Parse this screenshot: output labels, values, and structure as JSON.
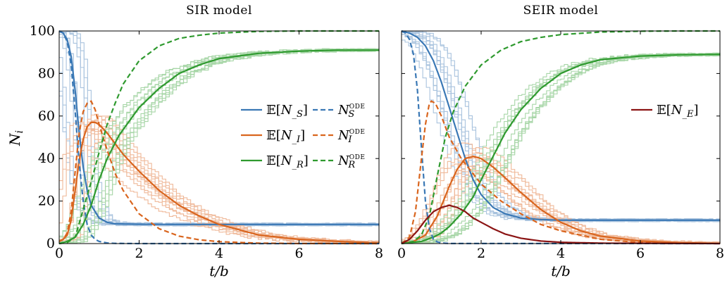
{
  "chart_data": [
    {
      "type": "line",
      "title": "SIR model",
      "xlabel": "t/b",
      "ylabel": "N_i",
      "xlim": [
        0,
        8
      ],
      "ylim": [
        0,
        100
      ],
      "xticks": [
        "0",
        "2",
        "4",
        "6",
        "8"
      ],
      "yticks": [
        "0",
        "20",
        "40",
        "60",
        "80",
        "100"
      ],
      "grid": false,
      "legend_position": "right",
      "series": [
        {
          "name": "𝔼[N_S]",
          "color": "#3a78b5",
          "dash": "solid",
          "x": [
            0,
            0.1,
            0.2,
            0.3,
            0.4,
            0.5,
            0.6,
            0.7,
            0.8,
            1.0,
            1.2,
            1.4,
            2,
            3,
            4,
            6,
            8
          ],
          "y": [
            100,
            99,
            96,
            88,
            72,
            52,
            36,
            25,
            18,
            12,
            10,
            9.3,
            9.1,
            9,
            9,
            9,
            9
          ]
        },
        {
          "name": "𝔼[N_I]",
          "color": "#d9651e",
          "dash": "solid",
          "x": [
            0,
            0.1,
            0.2,
            0.3,
            0.4,
            0.5,
            0.6,
            0.7,
            0.8,
            0.9,
            1.0,
            1.2,
            1.4,
            1.6,
            2,
            2.5,
            3,
            3.5,
            4,
            5,
            6,
            7,
            8
          ],
          "y": [
            1,
            2,
            4,
            11,
            25,
            39,
            49,
            55,
            57,
            57,
            56,
            52,
            47,
            42,
            34,
            25,
            18,
            13,
            9,
            4,
            2,
            1,
            0.3
          ]
        },
        {
          "name": "𝔼[N_R]",
          "color": "#2f9a2f",
          "dash": "solid",
          "x": [
            0,
            0.2,
            0.4,
            0.6,
            0.8,
            1.0,
            1.2,
            1.5,
            2,
            2.5,
            3,
            3.5,
            4,
            5,
            6,
            7,
            8
          ],
          "y": [
            0,
            1,
            3,
            9,
            18,
            30,
            40,
            51,
            64,
            73,
            80,
            84,
            87,
            89.5,
            90.5,
            91,
            91
          ]
        },
        {
          "name": "N_S^ODE",
          "color": "#3a78b5",
          "dash": "dashed",
          "x": [
            0,
            0.1,
            0.2,
            0.3,
            0.4,
            0.5,
            0.6,
            0.7,
            0.8,
            0.9,
            1.0,
            1.2,
            1.4,
            2,
            8
          ],
          "y": [
            100,
            99,
            95,
            84,
            62,
            38,
            20,
            9,
            4,
            2,
            1,
            0.3,
            0.1,
            0,
            0
          ]
        },
        {
          "name": "N_I^ODE",
          "color": "#d9651e",
          "dash": "dashed",
          "x": [
            0,
            0.1,
            0.2,
            0.3,
            0.4,
            0.5,
            0.6,
            0.7,
            0.8,
            0.9,
            1.0,
            1.2,
            1.4,
            1.6,
            2,
            2.5,
            3,
            3.5,
            4,
            5,
            6,
            8
          ],
          "y": [
            1,
            2,
            5,
            15,
            34,
            52,
            62,
            66,
            67,
            63,
            56,
            44,
            33,
            25,
            14,
            7,
            3.5,
            1.8,
            0.9,
            0.2,
            0.05,
            0
          ]
        },
        {
          "name": "N_R^ODE",
          "color": "#2f9a2f",
          "dash": "dashed",
          "x": [
            0,
            0.2,
            0.4,
            0.6,
            0.8,
            1.0,
            1.2,
            1.4,
            1.6,
            2,
            2.5,
            3,
            3.5,
            4,
            5,
            6,
            8
          ],
          "y": [
            0,
            0.5,
            3,
            16,
            29,
            43,
            56,
            66,
            75,
            86,
            93,
            96.5,
            98,
            99,
            99.8,
            100,
            100
          ]
        }
      ]
    },
    {
      "type": "line",
      "title": "SEIR model",
      "xlabel": "t/b",
      "ylabel": "",
      "xlim": [
        0,
        8
      ],
      "ylim": [
        0,
        100
      ],
      "xticks": [
        "0",
        "2",
        "4",
        "6",
        "8"
      ],
      "yticks": [],
      "grid": false,
      "legend_position": "top-right",
      "series": [
        {
          "name": "",
          "color": "#3a78b5",
          "dash": "solid",
          "x": [
            0,
            0.2,
            0.4,
            0.6,
            0.8,
            1.0,
            1.2,
            1.4,
            1.6,
            1.8,
            2.0,
            2.3,
            2.6,
            3,
            3.5,
            4,
            5,
            6,
            8
          ],
          "y": [
            100,
            99,
            97,
            93,
            86,
            76,
            64,
            52,
            40,
            30,
            23,
            17,
            14,
            12,
            11.3,
            11,
            11,
            11,
            11
          ]
        },
        {
          "name": "",
          "color": "#d9651e",
          "dash": "solid",
          "x": [
            0,
            0.3,
            0.6,
            0.9,
            1.2,
            1.4,
            1.6,
            1.8,
            2.0,
            2.3,
            2.6,
            3,
            3.5,
            4,
            4.5,
            5,
            6,
            7,
            8
          ],
          "y": [
            0,
            1,
            4,
            13,
            27,
            35,
            40,
            41,
            40,
            36,
            31,
            24,
            16,
            10,
            6,
            3.5,
            1.2,
            0.4,
            0.1
          ]
        },
        {
          "name": "",
          "color": "#2f9a2f",
          "dash": "solid",
          "x": [
            0,
            0.5,
            0.8,
            1.0,
            1.2,
            1.5,
            1.8,
            2.0,
            2.3,
            2.6,
            3,
            3.5,
            4,
            4.5,
            5,
            6,
            7,
            8
          ],
          "y": [
            0,
            1,
            3,
            5,
            8,
            14,
            22,
            30,
            41,
            52,
            63,
            73,
            80,
            84,
            86.5,
            88.2,
            88.8,
            89
          ]
        },
        {
          "name": "",
          "color": "#3a78b5",
          "dash": "dashed",
          "x": [
            0,
            0.1,
            0.2,
            0.3,
            0.4,
            0.5,
            0.6,
            0.7,
            0.8,
            0.9,
            1.0,
            1.2,
            8
          ],
          "y": [
            100,
            99,
            96,
            89,
            72,
            45,
            20,
            7,
            2,
            0.8,
            0.3,
            0.05,
            0
          ]
        },
        {
          "name": "",
          "color": "#d9651e",
          "dash": "dashed",
          "x": [
            0,
            0.2,
            0.35,
            0.5,
            0.6,
            0.7,
            0.75,
            0.85,
            1.0,
            1.2,
            1.5,
            2,
            2.5,
            3,
            3.5,
            4,
            5,
            6,
            8
          ],
          "y": [
            0,
            3,
            15,
            40,
            56,
            66,
            67,
            66,
            60,
            50,
            40,
            28,
            20,
            14,
            9,
            6,
            2,
            0.5,
            0
          ]
        },
        {
          "name": "",
          "color": "#2f9a2f",
          "dash": "dashed",
          "x": [
            0,
            0.3,
            0.5,
            0.7,
            0.9,
            1.1,
            1.3,
            1.6,
            2,
            2.5,
            3,
            3.5,
            4,
            5,
            6,
            7,
            8
          ],
          "y": [
            0,
            1,
            4,
            13,
            32,
            50,
            62,
            74,
            84,
            91,
            95,
            97,
            98.3,
            99.5,
            99.9,
            100,
            100
          ]
        },
        {
          "name": "𝔼[N_E]",
          "color": "#8b1414",
          "dash": "solid",
          "x": [
            0,
            0.2,
            0.4,
            0.6,
            0.8,
            1.0,
            1.2,
            1.4,
            1.6,
            1.8,
            2.0,
            2.3,
            2.6,
            3,
            3.5,
            4,
            5,
            8
          ],
          "y": [
            0,
            2,
            6,
            11,
            15,
            17,
            18,
            17,
            15,
            12,
            10,
            7,
            4.5,
            2.5,
            1.2,
            0.6,
            0.2,
            0
          ]
        }
      ]
    }
  ]
}
